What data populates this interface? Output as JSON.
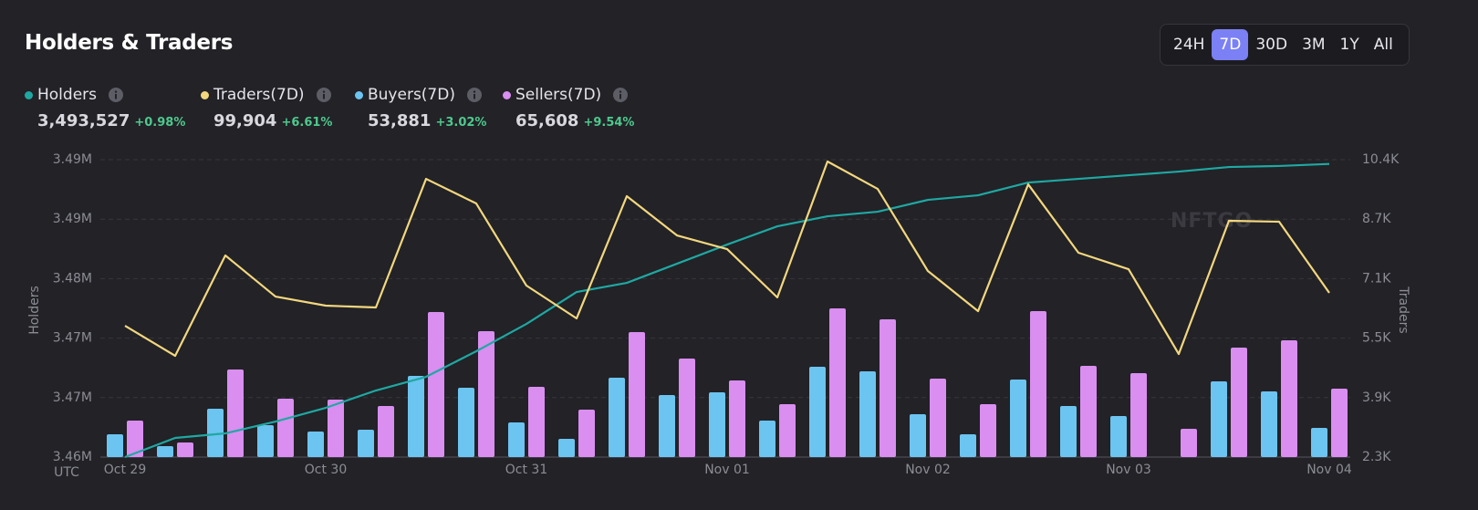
{
  "header": {
    "title": "Holders & Traders"
  },
  "range_buttons": {
    "options": [
      "24H",
      "7D",
      "30D",
      "3M",
      "1Y",
      "All"
    ],
    "active": "7D"
  },
  "chart_data": {
    "type": "combo",
    "watermark": "NFTGO",
    "x_label": "UTC",
    "y_label": "Holders",
    "y2_label": "Traders",
    "x": [
      "Oct 29",
      null,
      null,
      null,
      "Oct 30",
      null,
      null,
      null,
      "Oct 31",
      null,
      null,
      null,
      "Nov 01",
      null,
      null,
      null,
      "Nov 02",
      null,
      null,
      null,
      "Nov 03",
      null,
      null,
      null,
      "Nov 04"
    ],
    "ylim": [
      3461000,
      3494000
    ],
    "yticks": [
      {
        "value": 3461000,
        "label": "3.46M"
      },
      {
        "value": 3467600,
        "label": "3.47M"
      },
      {
        "value": 3474200,
        "label": "3.47M"
      },
      {
        "value": 3480800,
        "label": "3.48M"
      },
      {
        "value": 3487400,
        "label": "3.49M"
      },
      {
        "value": 3494000,
        "label": "3.49M"
      }
    ],
    "y2lim": [
      2300,
      10350
    ],
    "y2ticks": [
      {
        "value": 2300,
        "label": "2.3K"
      },
      {
        "value": 3910,
        "label": "3.9K"
      },
      {
        "value": 5520,
        "label": "5.5K"
      },
      {
        "value": 7130,
        "label": "7.1K"
      },
      {
        "value": 8740,
        "label": "8.7K"
      },
      {
        "value": 10350,
        "label": "10.4K"
      }
    ],
    "grid": true,
    "series": [
      {
        "name": "Holders",
        "type": "line",
        "color": "#1fa8a2",
        "total": "3,493,527",
        "change": "+0.98%",
        "values": [
          3461000,
          3463125,
          3463631,
          3464947,
          3466465,
          3468388,
          3469906,
          3472740,
          3475775,
          3479317,
          3480329,
          3482454,
          3484580,
          3486604,
          3487717,
          3488223,
          3489538,
          3490044,
          3491461,
          3491866,
          3492271,
          3492676,
          3493182,
          3493300,
          3493527
        ]
      },
      {
        "name": "Traders(7D)",
        "type": "line",
        "axis": "y2",
        "color": "#f3d77e",
        "total": "99,904",
        "change": "+6.61%",
        "values": [
          5855,
          5041,
          7757,
          6645,
          6399,
          6349,
          9830,
          9164,
          6942,
          6053,
          9361,
          8300,
          7929,
          6621,
          10300,
          9559,
          7337,
          6250,
          9682,
          7831,
          7386,
          5090,
          8695,
          8670,
          6744
        ]
      },
      {
        "name": "Buyers(7D)",
        "type": "bar",
        "axis": "y2",
        "color": "#6cc4f0",
        "total": "53,881",
        "change": "+3.02%",
        "values": [
          2917,
          2596,
          3609,
          3164,
          2991,
          3041,
          4497,
          4176,
          3238,
          2794,
          4448,
          3979,
          4053,
          3288,
          4744,
          4621,
          3460,
          2917,
          4399,
          3683,
          3411,
          null,
          4349,
          4078,
          3090
        ]
      },
      {
        "name": "Sellers(7D)",
        "type": "bar",
        "axis": "y2",
        "color": "#d98ef0",
        "total": "65,608",
        "change": "+9.54%",
        "values": [
          3288,
          2695,
          4670,
          3880,
          3855,
          3683,
          6226,
          5707,
          4201,
          3584,
          5683,
          4967,
          4374,
          3732,
          6324,
          6028,
          4423,
          3732,
          6250,
          4769,
          4571,
          3065,
          5263,
          5460,
          4152
        ]
      }
    ]
  }
}
